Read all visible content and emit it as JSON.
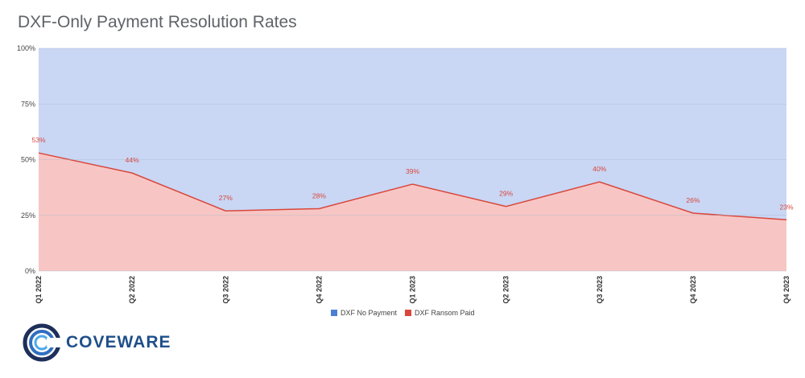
{
  "title": "DXF-Only Payment Resolution Rates",
  "logo": {
    "text": "COVEWARE",
    "icon": "coveware-ring-logo"
  },
  "colors": {
    "no_payment_fill": "#c9d6f4",
    "no_payment_legend": "#4a7fd4",
    "ransom_fill": "#f7c6c4",
    "ransom_line": "#d9473b",
    "ransom_legend": "#d9473b",
    "grid": "#aab6cc"
  },
  "chart_data": {
    "type": "area",
    "stacked": true,
    "categories": [
      "Q1 2022",
      "Q2 2022",
      "Q3 2022",
      "Q4 2022",
      "Q1 2023",
      "Q2 2023",
      "Q3 2023",
      "Q4 2023",
      "Q4 2023"
    ],
    "series": [
      {
        "name": "DXF No Payment",
        "values": [
          47,
          56,
          73,
          72,
          61,
          71,
          60,
          74,
          77
        ]
      },
      {
        "name": "DXF Ransom Paid",
        "values": [
          53,
          44,
          27,
          28,
          39,
          29,
          40,
          26,
          23
        ]
      }
    ],
    "data_labels": [
      "53%",
      "44%",
      "27%",
      "28%",
      "39%",
      "29%",
      "40%",
      "26%",
      "23%"
    ],
    "y_ticks": [
      "0%",
      "25%",
      "50%",
      "75%",
      "100%"
    ],
    "ylim": [
      0,
      100
    ],
    "legend_position": "bottom",
    "grid": true
  }
}
